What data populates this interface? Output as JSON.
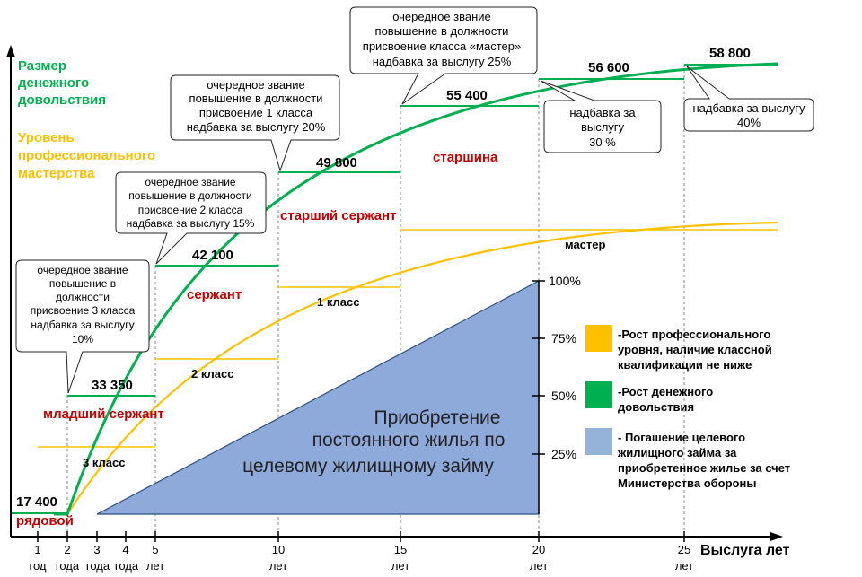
{
  "y_axis_title": {
    "line1": "Размер",
    "line2": "денежного",
    "line3": "довольствия"
  },
  "y_axis_subtitle": {
    "line1": "Уровень",
    "line2": "профессионального",
    "line3": "мастерства"
  },
  "x_axis_title": "Выслуга лет",
  "x_ticks": [
    {
      "num": "1",
      "unit": "год"
    },
    {
      "num": "2",
      "unit": "года"
    },
    {
      "num": "3",
      "unit": "года"
    },
    {
      "num": "4",
      "unit": "года"
    },
    {
      "num": "5",
      "unit": "лет"
    },
    {
      "num": "10",
      "unit": "лет"
    },
    {
      "num": "15",
      "unit": "лет"
    },
    {
      "num": "20",
      "unit": "лет"
    },
    {
      "num": "25",
      "unit": "лет"
    }
  ],
  "pay_levels": [
    "17 400",
    "33 350",
    "42 100",
    "49 800",
    "55 400",
    "56 600",
    "58 800"
  ],
  "ranks": [
    "рядовой",
    "младший сержант",
    "сержант",
    "старший сержант",
    "старшина"
  ],
  "classes": [
    "3 класс",
    "2 класс",
    "1 класс",
    "мастер"
  ],
  "callouts": {
    "c1": [
      "очередное звание",
      "повышение в",
      "должности",
      "присвоение 3 класса",
      "надбавка за выслугу",
      "10%"
    ],
    "c2": [
      "очередное звание",
      "повышение в  должности",
      "присвоение 2 класса",
      "надбавка за выслугу 15%"
    ],
    "c3": [
      "очередное звание",
      "повышение в должности",
      "присвоение 1 класса",
      "надбавка  за выслугу 20%"
    ],
    "c4": [
      "очередное звание",
      "повышение в должности",
      "присвоение  класса «мастер»",
      "надбавка за выслугу 25%"
    ],
    "c5": [
      "надбавка  за",
      "выслугу",
      "30 %"
    ],
    "c6": [
      "надбавка  за выслугу",
      "40%"
    ]
  },
  "housing": {
    "line1": "Приобретение",
    "line2": "постоянного жилья по",
    "line3": "целевому жилищному займу"
  },
  "percent_ticks": [
    "100%",
    "75%",
    "50%",
    "25%"
  ],
  "legend": [
    {
      "color": "#FFC000",
      "lines": [
        "-Рост профессионального",
        "уровня,  наличие классной",
        "квалификации не ниже"
      ]
    },
    {
      "color": "#00B050",
      "lines": [
        "-Рост денежного",
        "довольствия"
      ]
    },
    {
      "color": "#95B3D7",
      "lines": [
        "-  Погашение целевого",
        "жилищного займа за",
        "приобретенное жилье за счет",
        "Министерства обороны"
      ]
    }
  ],
  "colors": {
    "green": "#00B050",
    "yellow": "#FFC000",
    "blue": "#8EAADB",
    "rank_red": "#C00000"
  }
}
